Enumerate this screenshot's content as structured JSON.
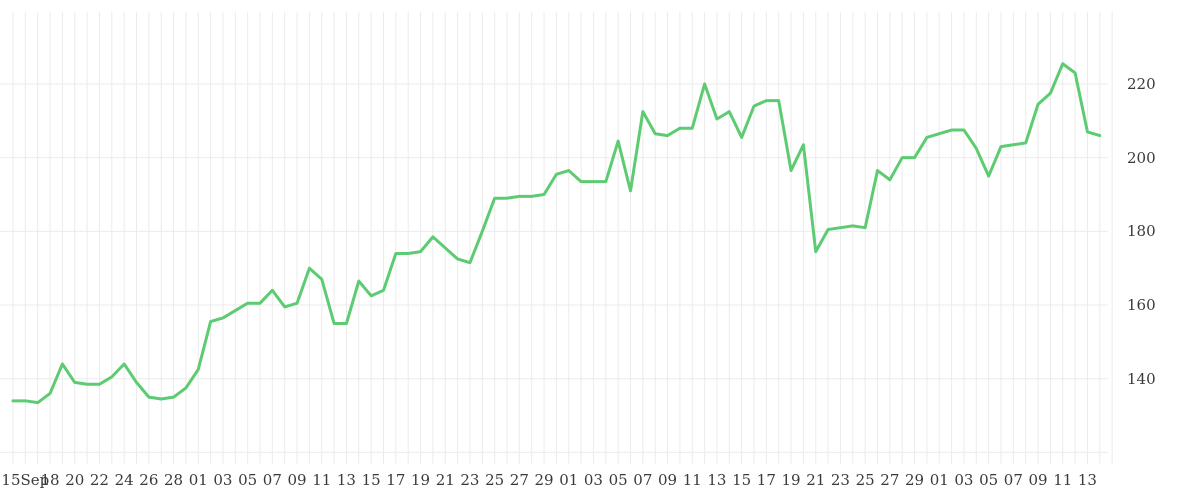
{
  "chart_data": {
    "type": "line",
    "title": "",
    "xlabel": "",
    "ylabel": "",
    "legend": null,
    "grid": true,
    "line_color": "#5dcb72",
    "grid_color": "#ebebeb",
    "text_color": "#3a3a3a",
    "background_color": "#ffffff",
    "y_axis_side": "right",
    "ylim": [
      120,
      240
    ],
    "y_tick_labels": [
      "220",
      "200",
      "180",
      "160",
      "140"
    ],
    "y_tick_values": [
      220,
      200,
      180,
      160,
      140
    ],
    "y_gridline_values": [
      220,
      200,
      180,
      160,
      140,
      120
    ],
    "x_tick_labels": [
      "15Sep",
      "18",
      "20",
      "22",
      "24",
      "26",
      "28",
      "01",
      "03",
      "05",
      "07",
      "09",
      "11",
      "13",
      "15",
      "17",
      "19",
      "21",
      "23",
      "25",
      "27",
      "29",
      "01",
      "03",
      "05",
      "07",
      "09",
      "11",
      "13",
      "15",
      "17",
      "19",
      "21",
      "23",
      "25",
      "27",
      "29",
      "01",
      "03",
      "05",
      "07",
      "09",
      "11",
      "13"
    ],
    "x_label_point_indices": [
      1,
      3,
      5,
      7,
      9,
      11,
      13,
      15,
      17,
      19,
      21,
      23,
      25,
      27,
      29,
      31,
      33,
      35,
      37,
      39,
      41,
      43,
      45,
      47,
      49,
      51,
      53,
      55,
      57,
      59,
      61,
      63,
      65,
      67,
      69,
      71,
      73,
      75,
      77,
      79,
      81,
      83,
      85,
      87
    ],
    "values": [
      134,
      134,
      133.5,
      136,
      144,
      139,
      138.5,
      138.5,
      140.5,
      144,
      139,
      135,
      134.5,
      135,
      137.5,
      142.5,
      155.5,
      156.5,
      158.5,
      160.5,
      160.5,
      164,
      159.5,
      160.5,
      170,
      167,
      155,
      155,
      166.5,
      162.5,
      164,
      174,
      174,
      174.5,
      178.5,
      175.5,
      172.5,
      171.5,
      180,
      189,
      189,
      189.5,
      189.5,
      190,
      195.5,
      196.5,
      193.5,
      193.5,
      193.5,
      204.5,
      191,
      212.5,
      206.5,
      206,
      208,
      208,
      220,
      210.5,
      212.5,
      205.5,
      214,
      215.5,
      215.5,
      196.5,
      203.5,
      174.5,
      180.5,
      181,
      181.5,
      181,
      196.5,
      194,
      200,
      200,
      205.5,
      206.5,
      207.5,
      207.5,
      202.5,
      195,
      203,
      203.5,
      204,
      214.5,
      217.5,
      225.5,
      223,
      207,
      206
    ]
  }
}
